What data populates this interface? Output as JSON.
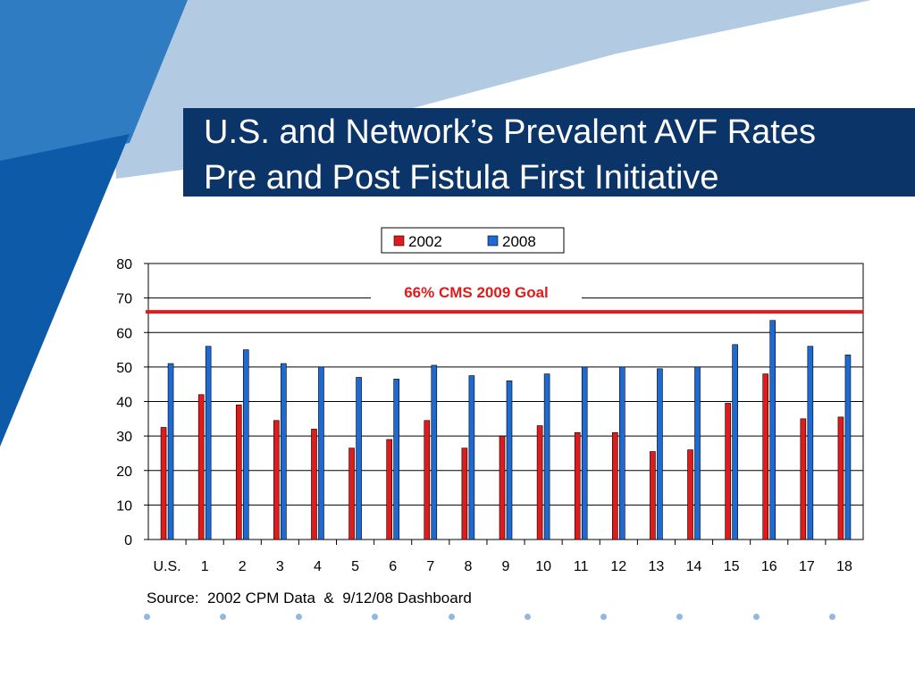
{
  "title": {
    "line1": "U.S. and Network’s Prevalent AVF Rates",
    "line2": "Pre and Post Fistula First Initiative"
  },
  "source": "Source:  2002 CPM Data  &  9/12/08 Dashboard",
  "colors": {
    "title_bg": "#0b3468",
    "series_2002": "#e01b1b",
    "series_2008": "#1e6ad2",
    "goal": "#e01b1b"
  },
  "chart_data": {
    "type": "bar",
    "categories": [
      "U.S.",
      "1",
      "2",
      "3",
      "4",
      "5",
      "6",
      "7",
      "8",
      "9",
      "10",
      "11",
      "12",
      "13",
      "14",
      "15",
      "16",
      "17",
      "18"
    ],
    "series": [
      {
        "name": "2002",
        "color": "#e01b1b",
        "values": [
          32.5,
          42,
          39,
          34.5,
          32,
          26.5,
          29,
          34.5,
          26.5,
          30,
          33,
          31,
          31,
          25.5,
          26,
          39.5,
          48,
          35,
          35.5
        ]
      },
      {
        "name": "2008",
        "color": "#1e6ad2",
        "values": [
          51,
          56,
          55,
          51,
          50,
          47,
          46.5,
          50.5,
          47.5,
          46,
          48,
          50,
          50,
          49.5,
          50,
          56.5,
          63.5,
          56,
          53.5
        ]
      }
    ],
    "ylim": [
      0,
      80
    ],
    "yticks": [
      0,
      10,
      20,
      30,
      40,
      50,
      60,
      70,
      80
    ],
    "grid": true,
    "legend": "top-center",
    "goal_line": {
      "value": 66,
      "label": "66% CMS 2009 Goal"
    }
  }
}
